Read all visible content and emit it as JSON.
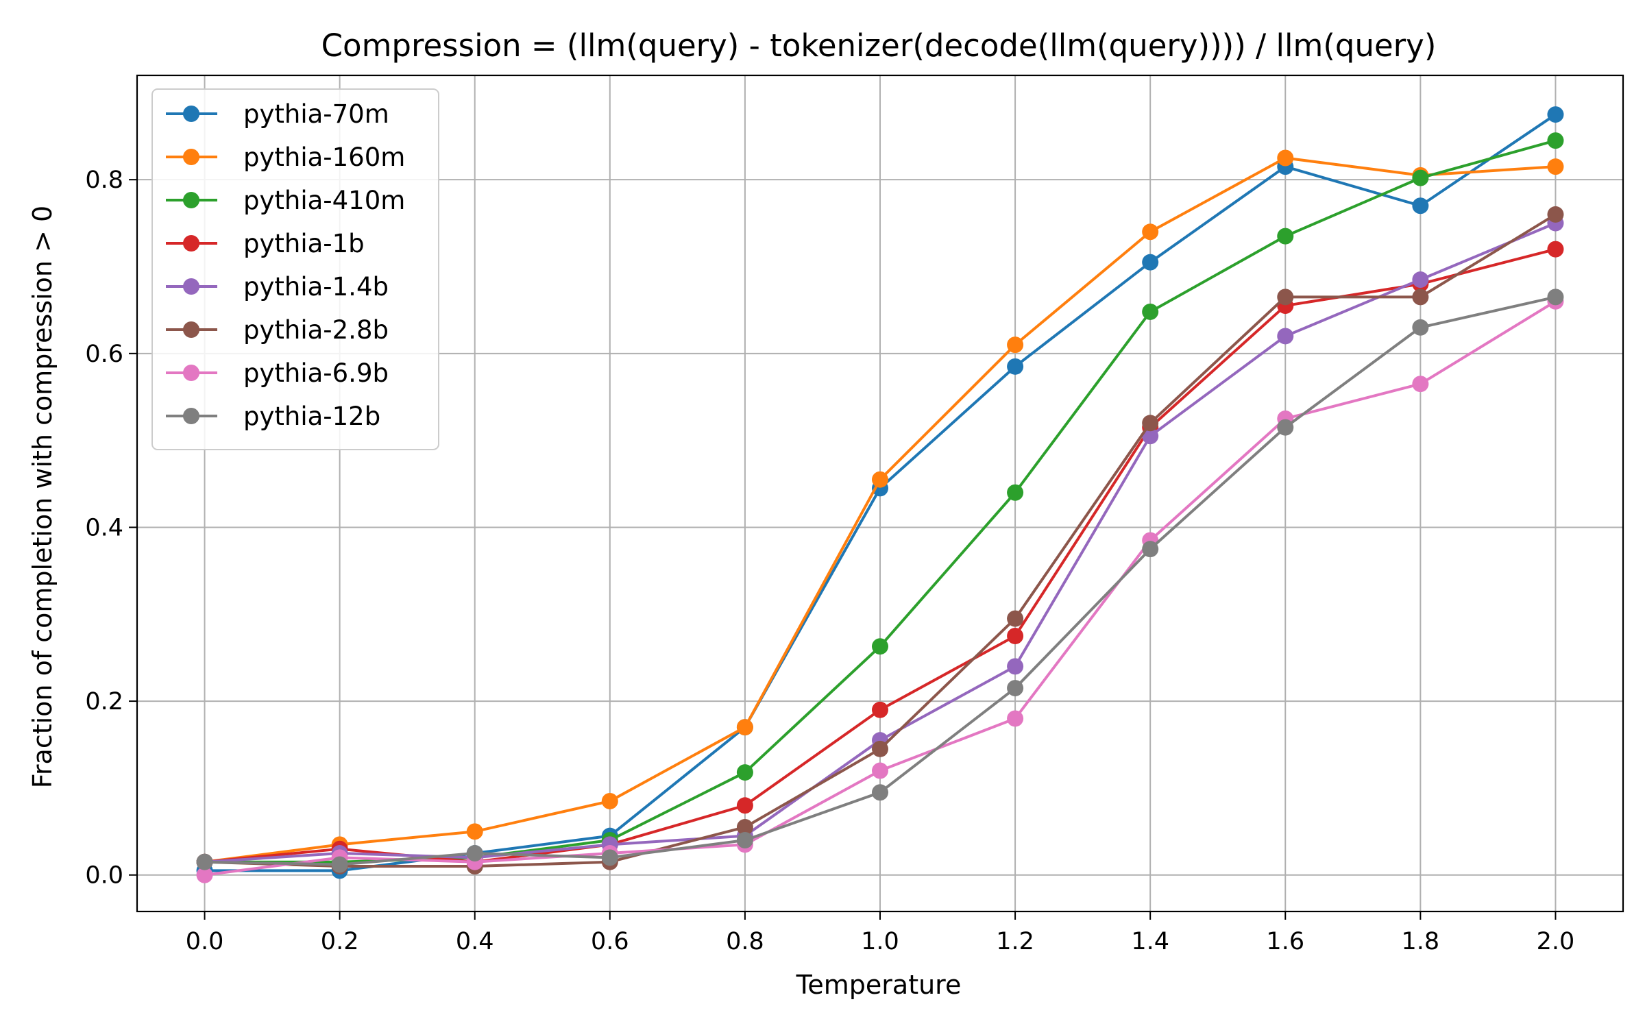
{
  "chart_data": {
    "type": "line",
    "title": "Compression = (llm(query) - tokenizer(decode(llm(query)))) / llm(query)",
    "xlabel": "Temperature",
    "ylabel": "Fraction of completion with compression > 0",
    "x": [
      0.0,
      0.2,
      0.4,
      0.6,
      0.8,
      1.0,
      1.2,
      1.4,
      1.6,
      1.8,
      2.0
    ],
    "xlim": [
      -0.1,
      2.1
    ],
    "ylim": [
      -0.042,
      0.92
    ],
    "xticks": [
      "0.0",
      "0.2",
      "0.4",
      "0.6",
      "0.8",
      "1.0",
      "1.2",
      "1.4",
      "1.6",
      "1.8",
      "2.0"
    ],
    "yticks": [
      "0.0",
      "0.2",
      "0.4",
      "0.6",
      "0.8"
    ],
    "grid": true,
    "legend_position": "upper-left",
    "series": [
      {
        "name": "pythia-70m",
        "color": "#1f77b4",
        "values": [
          0.005,
          0.005,
          0.025,
          0.045,
          0.17,
          0.445,
          0.585,
          0.705,
          0.815,
          0.77,
          0.875
        ]
      },
      {
        "name": "pythia-160m",
        "color": "#ff7f0e",
        "values": [
          0.015,
          0.035,
          0.05,
          0.085,
          0.17,
          0.455,
          0.61,
          0.74,
          0.825,
          0.805,
          0.815
        ]
      },
      {
        "name": "pythia-410m",
        "color": "#2ca02c",
        "values": [
          0.015,
          0.015,
          0.02,
          0.04,
          0.118,
          0.263,
          0.44,
          0.648,
          0.735,
          0.802,
          0.845
        ]
      },
      {
        "name": "pythia-1b",
        "color": "#d62728",
        "values": [
          0.015,
          0.03,
          0.015,
          0.035,
          0.08,
          0.19,
          0.275,
          0.515,
          0.655,
          0.68,
          0.72
        ]
      },
      {
        "name": "pythia-1.4b",
        "color": "#9467bd",
        "values": [
          0.015,
          0.025,
          0.02,
          0.035,
          0.045,
          0.155,
          0.24,
          0.505,
          0.62,
          0.685,
          0.75
        ]
      },
      {
        "name": "pythia-2.8b",
        "color": "#8c564b",
        "values": [
          0.015,
          0.01,
          0.01,
          0.015,
          0.055,
          0.145,
          0.295,
          0.52,
          0.665,
          0.665,
          0.76
        ]
      },
      {
        "name": "pythia-6.9b",
        "color": "#e377c2",
        "values": [
          0.0,
          0.02,
          0.015,
          0.025,
          0.035,
          0.12,
          0.18,
          0.385,
          0.525,
          0.565,
          0.66
        ]
      },
      {
        "name": "pythia-12b",
        "color": "#7f7f7f",
        "values": [
          0.015,
          0.012,
          0.025,
          0.02,
          0.04,
          0.095,
          0.215,
          0.375,
          0.515,
          0.63,
          0.665
        ]
      }
    ]
  }
}
